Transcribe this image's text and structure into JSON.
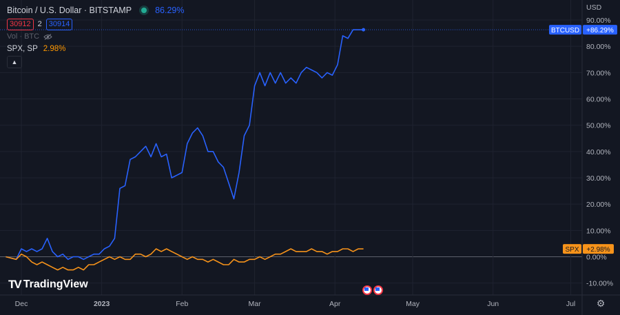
{
  "header": {
    "title": "Bitcoin / U.S. Dollar · BITSTAMP",
    "main_pct": "86.29%",
    "bid": "30912",
    "spread": "2",
    "ask": "30914",
    "vol_label": "Vol · BTC",
    "compare_symbol": "SPX, SP",
    "compare_pct": "2.98%"
  },
  "axis": {
    "currency": "USD"
  },
  "badges": {
    "btc_symbol": "BTCUSD",
    "btc_value": "+86.29%",
    "spx_symbol": "SPX",
    "spx_value": "+2.98%"
  },
  "brand": {
    "name": "TradingView",
    "mark": "TV"
  },
  "colors": {
    "background": "#131722",
    "btc": "#2962ff",
    "spx": "#f7931a",
    "grid": "#1f2330"
  },
  "chart_data": {
    "type": "line",
    "xlabel": "",
    "ylabel": "",
    "ylim": [
      -12,
      90
    ],
    "y_ticks": [
      "90.00%",
      "80.00%",
      "70.00%",
      "60.00%",
      "50.00%",
      "40.00%",
      "30.00%",
      "20.00%",
      "10.00%",
      "0.00%",
      "-10.00%"
    ],
    "y_tick_values": [
      90,
      80,
      70,
      60,
      50,
      40,
      30,
      20,
      10,
      0,
      -10
    ],
    "x_ticks": [
      "Dec",
      "2023",
      "Feb",
      "Mar",
      "Apr",
      "May",
      "Jun",
      "Jul"
    ],
    "x_tick_days": [
      0,
      31,
      62,
      90,
      121,
      151,
      182,
      212
    ],
    "x_range_days": [
      -6,
      230
    ],
    "series": [
      {
        "name": "BTCUSD",
        "color": "#2962ff",
        "x": [
          -6,
          -2,
          0,
          2,
          4,
          6,
          8,
          10,
          12,
          14,
          16,
          18,
          20,
          22,
          24,
          26,
          28,
          30,
          32,
          34,
          36,
          38,
          40,
          42,
          44,
          46,
          48,
          50,
          52,
          54,
          56,
          58,
          60,
          62,
          64,
          66,
          68,
          70,
          72,
          74,
          76,
          78,
          80,
          82,
          84,
          86,
          88,
          90,
          92,
          94,
          96,
          98,
          100,
          102,
          104,
          106,
          108,
          110,
          112,
          114,
          116,
          118,
          120,
          122,
          124,
          126,
          128,
          130,
          132,
          134,
          135
        ],
        "values": [
          0,
          -1,
          3,
          2,
          3,
          2,
          3,
          7,
          2,
          0,
          1,
          -1,
          0,
          0,
          -1,
          0,
          1,
          1,
          3,
          4,
          7,
          26,
          27,
          37,
          38,
          40,
          42,
          38,
          43,
          38,
          39,
          30,
          31,
          32,
          43,
          47,
          49,
          46,
          40,
          40,
          36,
          34,
          28,
          22,
          32,
          46,
          50,
          65,
          70,
          65,
          70,
          66,
          70,
          66,
          68,
          66,
          70,
          72,
          71,
          70,
          68,
          70,
          69,
          73,
          84,
          83,
          86.29,
          86.29,
          86.29,
          86.29,
          86.29
        ],
        "end_day": 132
      },
      {
        "name": "SPX",
        "color": "#f7931a",
        "x": [
          -6,
          -2,
          0,
          2,
          4,
          6,
          8,
          10,
          12,
          14,
          16,
          18,
          20,
          22,
          24,
          26,
          28,
          30,
          32,
          34,
          36,
          38,
          40,
          42,
          44,
          46,
          48,
          50,
          52,
          54,
          56,
          58,
          60,
          62,
          64,
          66,
          68,
          70,
          72,
          74,
          76,
          78,
          80,
          82,
          84,
          86,
          88,
          90,
          92,
          94,
          96,
          98,
          100,
          102,
          104,
          106,
          108,
          110,
          112,
          114,
          116,
          118,
          120,
          122,
          124,
          126,
          128,
          130,
          132
        ],
        "values": [
          0,
          -1,
          1,
          0,
          -2,
          -3,
          -2,
          -3,
          -4,
          -5,
          -4,
          -5,
          -5,
          -4,
          -5,
          -3,
          -3,
          -2,
          -1,
          0,
          -1,
          0,
          -1,
          -1,
          1,
          1,
          0,
          1,
          3,
          2,
          3,
          2,
          1,
          0,
          -1,
          0,
          -1,
          -1,
          -2,
          -1,
          -2,
          -3,
          -3,
          -1,
          -2,
          -2,
          -1,
          -1,
          0,
          -1,
          0,
          1,
          1,
          2,
          3,
          2,
          2,
          2,
          3,
          2,
          2,
          1,
          2,
          2,
          3,
          3,
          2,
          3,
          2.98
        ],
        "end_day": 132
      }
    ]
  }
}
